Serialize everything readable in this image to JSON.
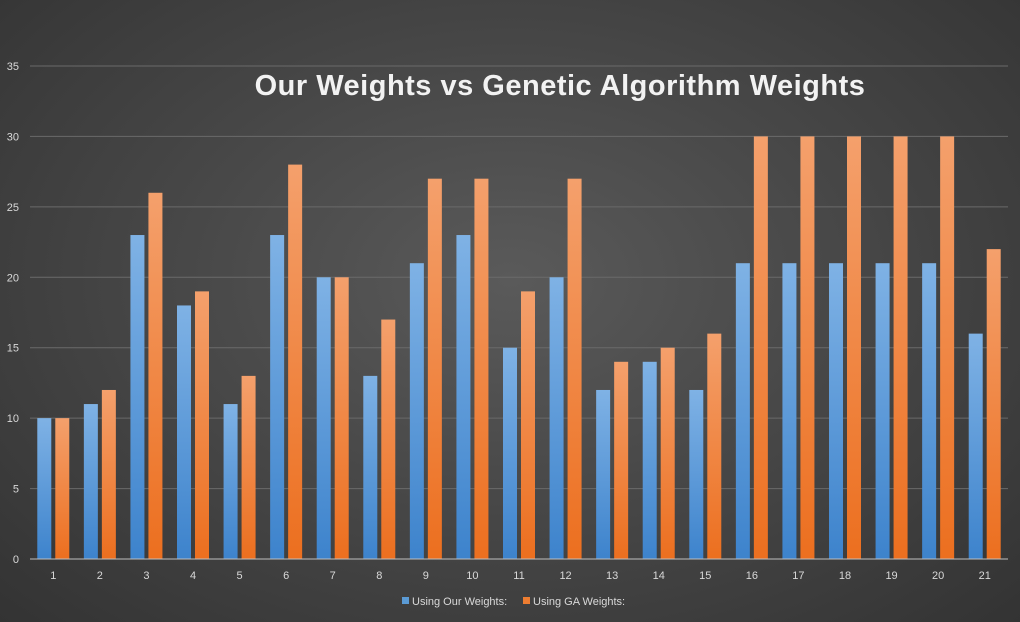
{
  "chart_data": {
    "type": "bar",
    "title": "Our Weights vs Genetic Algorithm Weights",
    "xlabel": "",
    "ylabel": "",
    "categories": [
      "1",
      "2",
      "3",
      "4",
      "5",
      "6",
      "7",
      "8",
      "9",
      "10",
      "11",
      "12",
      "13",
      "14",
      "15",
      "16",
      "17",
      "18",
      "19",
      "20",
      "21"
    ],
    "series": [
      {
        "name": "Using Our Weights:",
        "color": "#5b9bd5",
        "values": [
          10,
          11,
          23,
          18,
          11,
          23,
          20,
          13,
          21,
          23,
          15,
          20,
          12,
          14,
          12,
          21,
          21,
          21,
          21,
          21,
          16
        ]
      },
      {
        "name": "Using GA Weights:",
        "color": "#ed7d31",
        "values": [
          10,
          12,
          26,
          19,
          13,
          28,
          20,
          17,
          27,
          27,
          19,
          27,
          14,
          15,
          16,
          30,
          30,
          30,
          30,
          30,
          22
        ]
      }
    ],
    "ylim": [
      0,
      35
    ],
    "yticks": [
      0,
      5,
      10,
      15,
      20,
      25,
      30,
      35
    ],
    "grid": true,
    "legend_position": "bottom"
  }
}
